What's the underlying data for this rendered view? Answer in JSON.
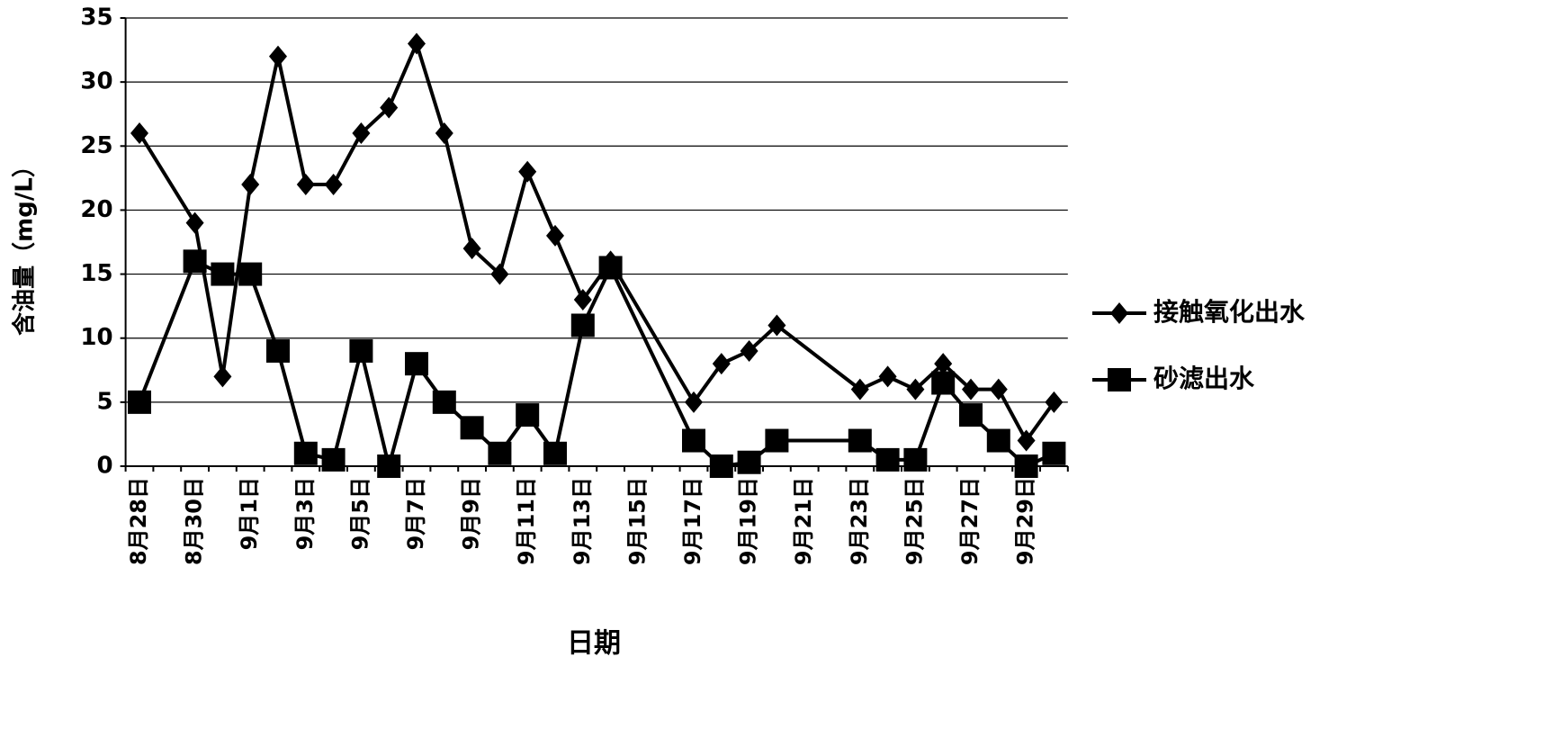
{
  "chart_data": {
    "type": "line",
    "x_label": "日期",
    "y_label": "含油量（mg/L）",
    "categories": [
      "8月28日",
      null,
      "8月30日",
      null,
      "9月1日",
      null,
      "9月3日",
      null,
      "9月5日",
      null,
      "9月7日",
      null,
      "9月9日",
      null,
      "9月11日",
      null,
      "9月13日",
      null,
      "9月15日",
      null,
      "9月17日",
      null,
      "9月19日",
      null,
      "9月21日",
      null,
      "9月23日",
      null,
      "9月25日",
      null,
      "9月27日",
      null,
      "9月29日",
      null
    ],
    "series": [
      {
        "name": "接触氧化出水",
        "color": "#000000",
        "marker": "diamond",
        "values": [
          26,
          null,
          19,
          7,
          22,
          32,
          22,
          22,
          26,
          28,
          33,
          26,
          17,
          15,
          23,
          18,
          13,
          16,
          null,
          null,
          5,
          8,
          9,
          11,
          null,
          null,
          6,
          7,
          6,
          8,
          6,
          6,
          2,
          5
        ]
      },
      {
        "name": "砂滤出水",
        "color": "#000000",
        "marker": "square",
        "values": [
          5,
          null,
          16,
          15,
          15,
          9,
          1,
          0.5,
          9,
          0,
          8,
          5,
          3,
          1,
          4,
          1,
          11,
          15.5,
          null,
          null,
          2,
          0,
          0.3,
          2,
          null,
          null,
          2,
          0.5,
          0.5,
          6.5,
          4,
          2,
          0,
          1
        ]
      }
    ],
    "span_gaps": true,
    "ylim": [
      0,
      35
    ],
    "yticks": [
      0,
      5,
      10,
      15,
      20,
      25,
      30,
      35
    ],
    "grid": true,
    "legend": "right"
  }
}
